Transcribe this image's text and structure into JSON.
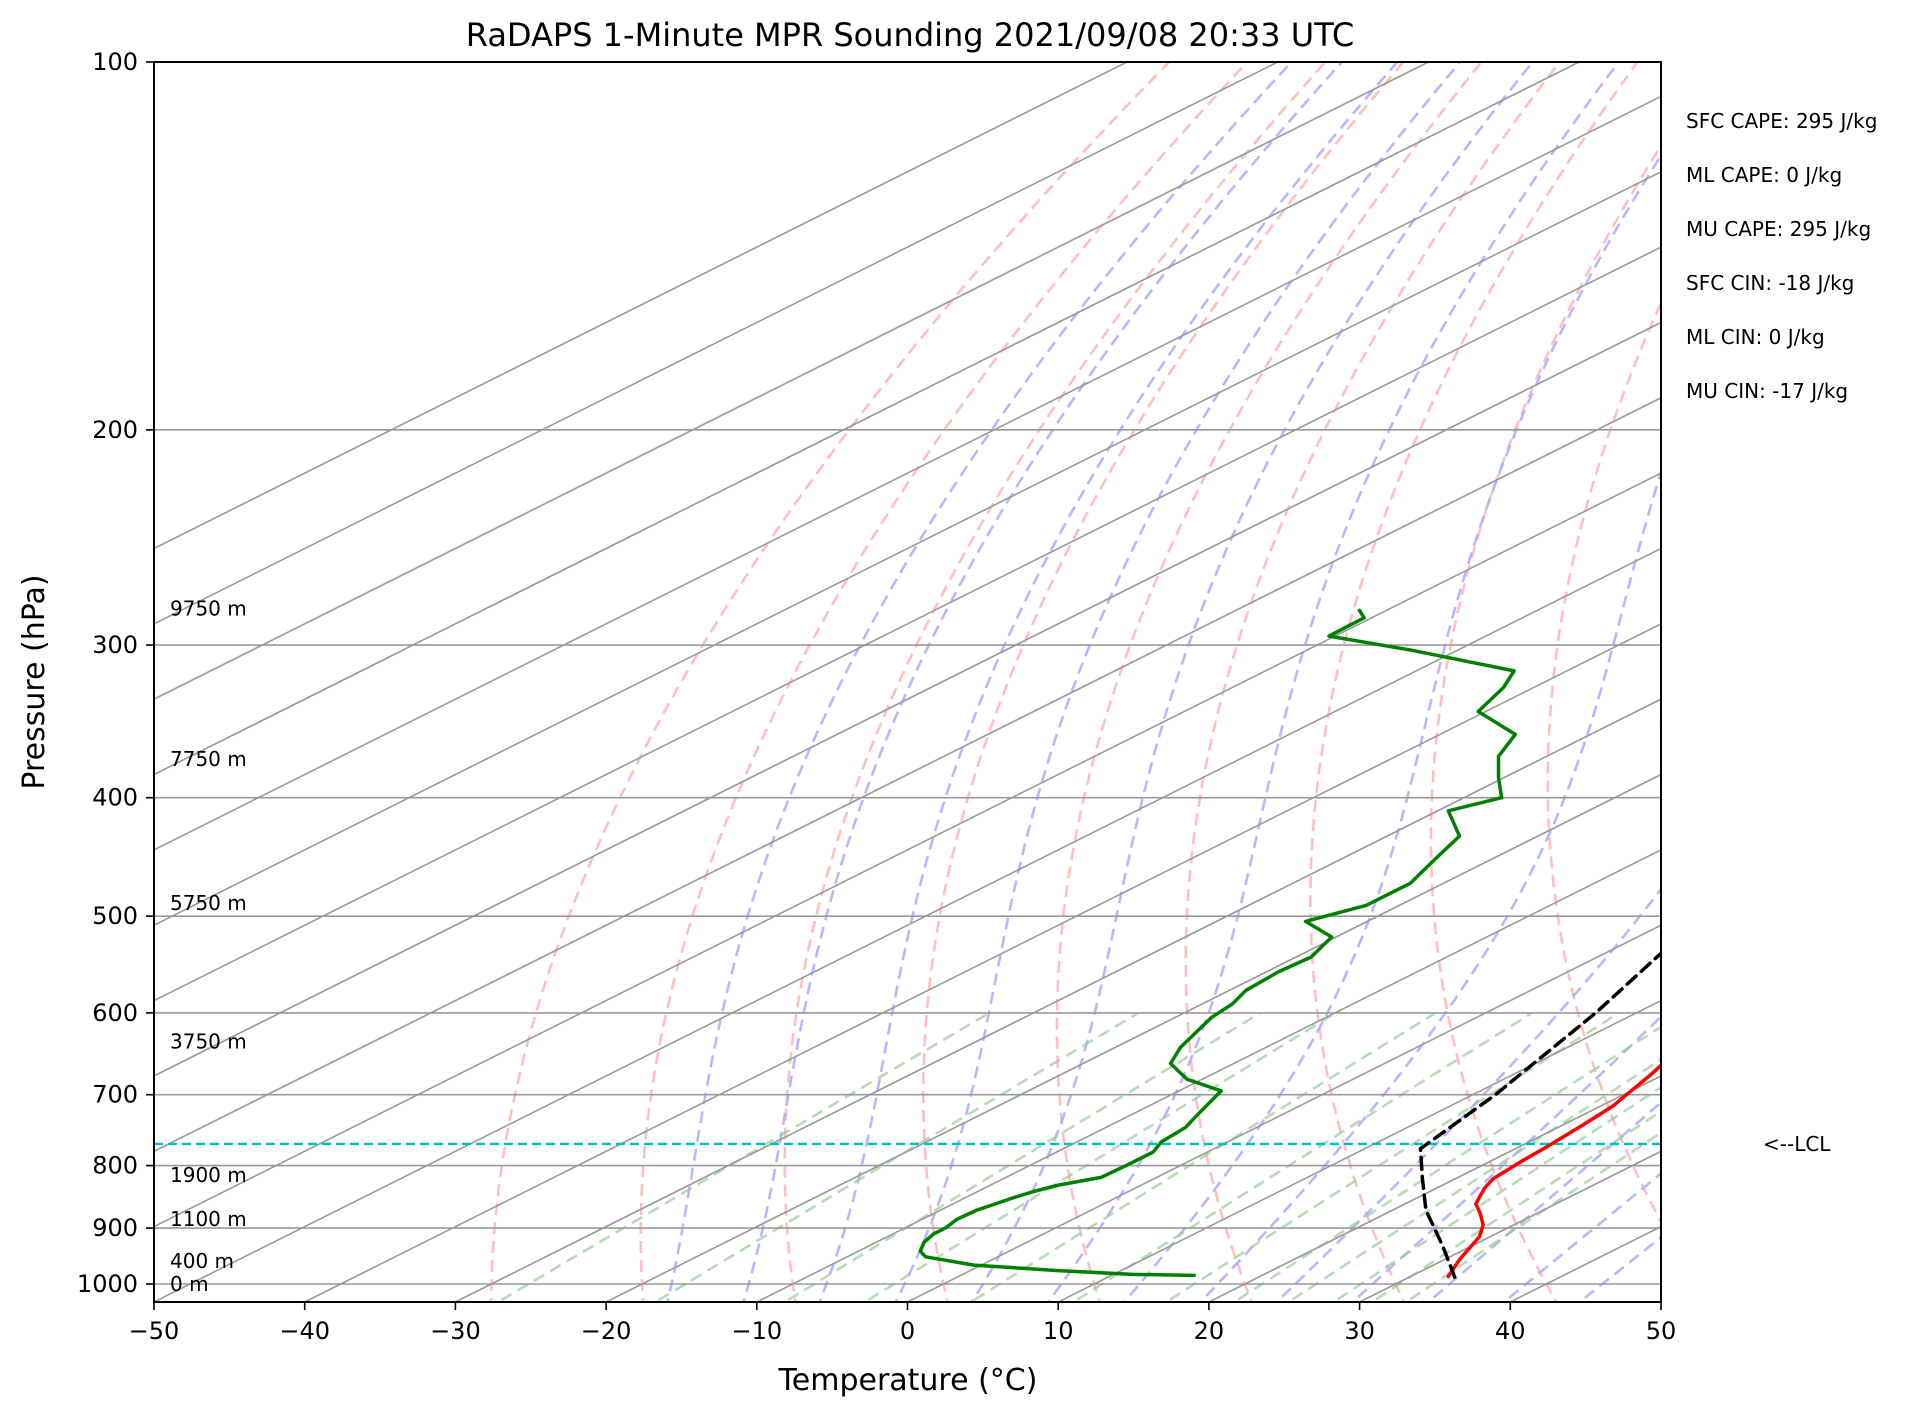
{
  "title": "RaDAPS 1-Minute MPR Sounding 2021/09/08 20:33 UTC",
  "stats": [
    "SFC CAPE: 295 J/kg",
    "ML CAPE: 0 J/kg",
    "MU CAPE: 295 J/kg",
    "SFC CIN: -18 J/kg",
    "ML CIN: 0 J/kg",
    "MU CIN: -17 J/kg"
  ],
  "lcl_label": "<--LCL",
  "chart_data": {
    "type": "line",
    "subtype": "skew-T log-p diagram",
    "xlabel": "Temperature (°C)",
    "ylabel": "Pressure (hPa)",
    "xlim": [
      -50,
      50
    ],
    "ylim": [
      1050,
      100
    ],
    "y_scale": "log",
    "x_ticks": [
      -50,
      -40,
      -30,
      -20,
      -10,
      0,
      10,
      20,
      30,
      40,
      50
    ],
    "y_ticks": [
      100,
      200,
      300,
      400,
      500,
      600,
      700,
      800,
      900,
      1000
    ],
    "grid": true,
    "lcl_pressure_hpa": 768,
    "colors": {
      "temperature": "#ff0000",
      "dewpoint": "#008000",
      "parcel": "#000000",
      "lcl": "#00bfbf",
      "dry_adiabats": "#ffaaaa",
      "moist_adiabats": "#aaaaff",
      "mixing_ratio": "#99cc99",
      "isotherms": "#999999",
      "isobars": "#999999"
    },
    "height_labels": [
      {
        "label": "9750 m",
        "p": 280
      },
      {
        "label": "7750 m",
        "p": 372
      },
      {
        "label": "5750 m",
        "p": 488
      },
      {
        "label": "3750 m",
        "p": 633
      },
      {
        "label": "1900 m",
        "p": 814
      },
      {
        "label": "1100 m",
        "p": 885
      },
      {
        "label": "400 m",
        "p": 958
      },
      {
        "label": "0 m",
        "p": 1000
      }
    ],
    "series": [
      {
        "name": "Temperature",
        "points": [
          {
            "p": 986,
            "t": 32.5
          },
          {
            "p": 955,
            "t": 31.0
          },
          {
            "p": 915,
            "t": 29.3
          },
          {
            "p": 895,
            "t": 28.0
          },
          {
            "p": 875,
            "t": 26.2
          },
          {
            "p": 860,
            "t": 24.7
          },
          {
            "p": 850,
            "t": 24.1
          },
          {
            "p": 835,
            "t": 23.2
          },
          {
            "p": 820,
            "t": 22.5
          },
          {
            "p": 795,
            "t": 22.1
          },
          {
            "p": 770,
            "t": 21.8
          },
          {
            "p": 740,
            "t": 21.3
          },
          {
            "p": 715,
            "t": 20.8
          },
          {
            "p": 700,
            "t": 20.2
          },
          {
            "p": 675,
            "t": 19.2
          },
          {
            "p": 650,
            "t": 18.0
          },
          {
            "p": 625,
            "t": 16.8
          },
          {
            "p": 600,
            "t": 15.5
          },
          {
            "p": 575,
            "t": 14.2
          },
          {
            "p": 545,
            "t": 12.4
          },
          {
            "p": 530,
            "t": 10.7
          },
          {
            "p": 510,
            "t": 9.5
          },
          {
            "p": 480,
            "t": 7.8
          },
          {
            "p": 460,
            "t": 6.6
          },
          {
            "p": 440,
            "t": 4.8
          },
          {
            "p": 425,
            "t": 3.1
          },
          {
            "p": 410,
            "t": 1.6
          },
          {
            "p": 395,
            "t": 0.5
          },
          {
            "p": 380,
            "t": -0.9
          },
          {
            "p": 360,
            "t": -3.1
          },
          {
            "p": 350,
            "t": -4.4
          },
          {
            "p": 320,
            "t": -7.5
          },
          {
            "p": 295,
            "t": -10.4
          },
          {
            "p": 278,
            "t": -12.4
          }
        ]
      },
      {
        "name": "Dewpoint",
        "points": [
          {
            "p": 984,
            "t": 15.5
          },
          {
            "p": 982,
            "t": 11.3
          },
          {
            "p": 975,
            "t": 5.8
          },
          {
            "p": 965,
            "t": -0.5
          },
          {
            "p": 950,
            "t": -4.8
          },
          {
            "p": 940,
            "t": -5.9
          },
          {
            "p": 925,
            "t": -6.8
          },
          {
            "p": 910,
            "t": -7.3
          },
          {
            "p": 900,
            "t": -7.3
          },
          {
            "p": 885,
            "t": -7.7
          },
          {
            "p": 870,
            "t": -7.6
          },
          {
            "p": 860,
            "t": -7.2
          },
          {
            "p": 850,
            "t": -6.8
          },
          {
            "p": 840,
            "t": -6.3
          },
          {
            "p": 830,
            "t": -5.5
          },
          {
            "p": 818,
            "t": -3.7
          },
          {
            "p": 800,
            "t": -3.6
          },
          {
            "p": 780,
            "t": -3.6
          },
          {
            "p": 765,
            "t": -4.4
          },
          {
            "p": 745,
            "t": -4.7
          },
          {
            "p": 725,
            "t": -5.7
          },
          {
            "p": 695,
            "t": -7.2
          },
          {
            "p": 680,
            "t": -11.0
          },
          {
            "p": 660,
            "t": -14.2
          },
          {
            "p": 640,
            "t": -15.7
          },
          {
            "p": 625,
            "t": -16.5
          },
          {
            "p": 605,
            "t": -17.6
          },
          {
            "p": 590,
            "t": -18.0
          },
          {
            "p": 575,
            "t": -18.9
          },
          {
            "p": 555,
            "t": -19.2
          },
          {
            "p": 540,
            "t": -19.0
          },
          {
            "p": 520,
            "t": -20.3
          },
          {
            "p": 505,
            "t": -24.1
          },
          {
            "p": 490,
            "t": -22.2
          },
          {
            "p": 470,
            "t": -22.2
          },
          {
            "p": 450,
            "t": -23.7
          },
          {
            "p": 430,
            "t": -25.2
          },
          {
            "p": 410,
            "t": -29.3
          },
          {
            "p": 400,
            "t": -27.5
          },
          {
            "p": 385,
            "t": -30.4
          },
          {
            "p": 370,
            "t": -33.2
          },
          {
            "p": 355,
            "t": -35.0
          },
          {
            "p": 340,
            "t": -40.5
          },
          {
            "p": 325,
            "t": -42.0
          },
          {
            "p": 315,
            "t": -43.5
          },
          {
            "p": 303,
            "t": -53.0
          },
          {
            "p": 295,
            "t": -60.4
          },
          {
            "p": 285,
            "t": -60.5
          },
          {
            "p": 281,
            "t": -61.8
          }
        ]
      },
      {
        "name": "Parcel",
        "points": [
          {
            "p": 987,
            "t": 33.0
          },
          {
            "p": 930,
            "t": 28.0
          },
          {
            "p": 870,
            "t": 22.2
          },
          {
            "p": 820,
            "t": 17.8
          },
          {
            "p": 775,
            "t": 13.7
          },
          {
            "p": 700,
            "t": 11.5
          },
          {
            "p": 600,
            "t": 7.3
          },
          {
            "p": 500,
            "t": 1.5
          },
          {
            "p": 400,
            "t": -7.4
          },
          {
            "p": 350,
            "t": -13.6
          },
          {
            "p": 300,
            "t": -22.5
          },
          {
            "p": 278,
            "t": -27.5
          }
        ]
      }
    ]
  }
}
